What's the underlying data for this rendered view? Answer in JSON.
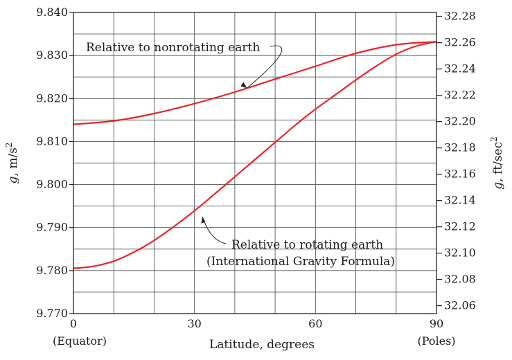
{
  "chart_data": {
    "type": "line",
    "xlabel": "Latitude, degrees",
    "ylabel": "g, m/s²",
    "ylabel_right": "g, ft/sec²",
    "xlim": [
      0,
      90
    ],
    "ylim": [
      9.77,
      9.84
    ],
    "ylim_right": [
      32.054,
      32.283
    ],
    "grid": true,
    "x_ticks": [
      0,
      10,
      20,
      30,
      40,
      50,
      60,
      70,
      80,
      90
    ],
    "x_tick_labels": [
      {
        "x": 0,
        "label": "0"
      },
      {
        "x": 30,
        "label": "30"
      },
      {
        "x": 60,
        "label": "60"
      },
      {
        "x": 90,
        "label": "90"
      }
    ],
    "x_sublabels": [
      {
        "x": 0,
        "label": "(Equator)"
      },
      {
        "x": 90,
        "label": "(Poles)"
      }
    ],
    "y_ticks": [
      9.77,
      9.78,
      9.79,
      9.8,
      9.81,
      9.82,
      9.83,
      9.84
    ],
    "y_tick_labels": [
      "9.770",
      "9.780",
      "9.790",
      "9.800",
      "9.810",
      "9.820",
      "9.830",
      "9.840"
    ],
    "y_minor_ticks": [
      9.775,
      9.785,
      9.795,
      9.805,
      9.815,
      9.825,
      9.835
    ],
    "y_right_ticks": [
      32.06,
      32.08,
      32.1,
      32.12,
      32.14,
      32.16,
      32.18,
      32.2,
      32.22,
      32.24,
      32.26,
      32.28
    ],
    "y_right_tick_labels": [
      "32.06",
      "32.08",
      "32.10",
      "32.12",
      "32.14",
      "32.16",
      "32.18",
      "32.20",
      "32.22",
      "32.24",
      "32.26",
      "32.28"
    ],
    "series": [
      {
        "name": "Relative to nonrotating earth",
        "color": "#e8232a",
        "x": [
          0,
          10,
          20,
          30,
          40,
          50,
          60,
          70,
          80,
          90
        ],
        "y": [
          9.814,
          9.8148,
          9.8165,
          9.8188,
          9.8215,
          9.8245,
          9.8275,
          9.8305,
          9.8325,
          9.8332
        ]
      },
      {
        "name": "Relative to rotating earth",
        "name_line2": "(International Gravity Formula)",
        "color": "#e8232a",
        "x": [
          0,
          5,
          10,
          15,
          20,
          25,
          30,
          35,
          40,
          45,
          50,
          55,
          60,
          65,
          70,
          75,
          80,
          85,
          90
        ],
        "y": [
          9.7805,
          9.781,
          9.7822,
          9.7843,
          9.787,
          9.7903,
          9.7939,
          9.7978,
          9.8018,
          9.8058,
          9.8098,
          9.8138,
          9.8175,
          9.8209,
          9.8243,
          9.8275,
          9.8303,
          9.8322,
          9.8332
        ]
      }
    ],
    "annotations": [
      {
        "text": "Relative to nonrotating earth",
        "series": 0
      },
      {
        "text": "Relative to rotating earth",
        "text_line2": "(International Gravity Formula)",
        "series": 1
      }
    ]
  }
}
